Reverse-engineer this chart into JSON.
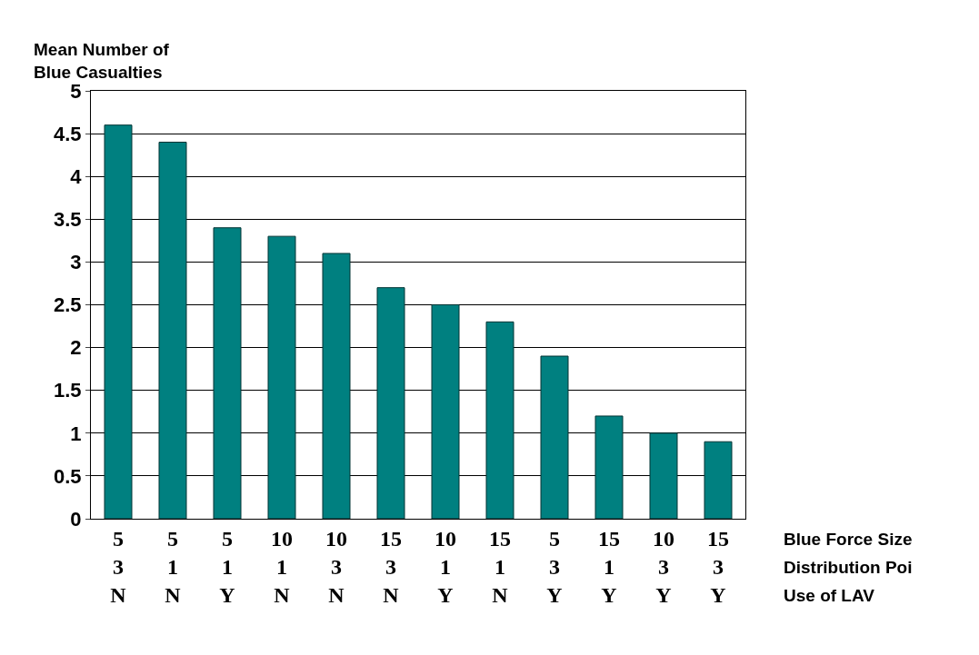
{
  "chart_data": {
    "type": "bar",
    "ylabel": "Mean Number of\nBlue Casualties",
    "categories": [
      "5\n3\nN",
      "5\n1\nN",
      "5\n1\nY",
      "10\n1\nN",
      "10\n3\nN",
      "15\n3\nN",
      "10\n1\nY",
      "15\n1\nN",
      "5\n3\nY",
      "15\n1\nY",
      "10\n3\nY",
      "15\n3\nY"
    ],
    "values": [
      4.6,
      4.4,
      3.4,
      3.3,
      3.1,
      2.7,
      2.5,
      2.3,
      1.9,
      1.2,
      1.0,
      0.9
    ],
    "color": "#008080",
    "ylim": [
      0,
      5
    ],
    "yticks": [
      0,
      0.5,
      1,
      1.5,
      2,
      2.5,
      3,
      3.5,
      4,
      4.5,
      5
    ],
    "grid": "y",
    "annotations": [
      "Blue Force Size",
      "Distribution Poi",
      "Use of LAV"
    ]
  }
}
